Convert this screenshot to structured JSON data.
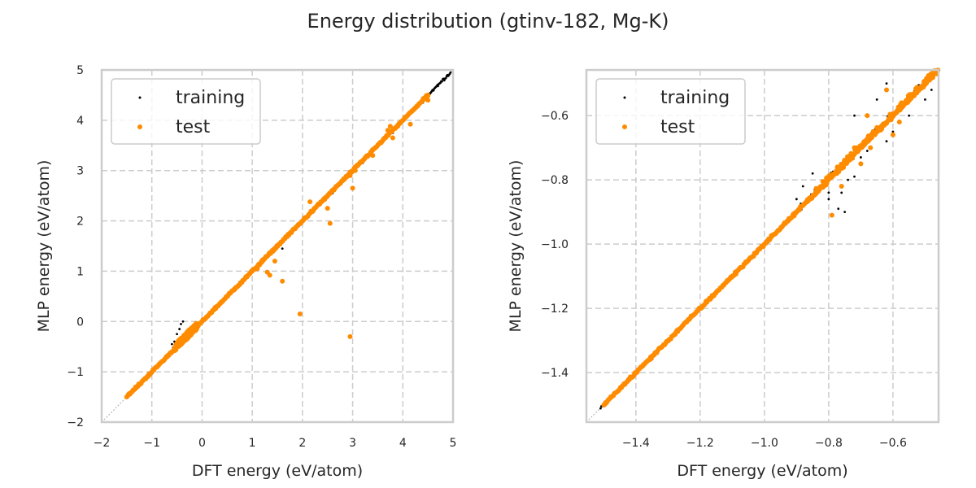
{
  "chart_data": [
    {
      "type": "scatter",
      "panel": "left",
      "suptitle": "Energy distribution (gtinv-182, Mg-K)",
      "xlabel": "DFT energy (eV/atom)",
      "ylabel": "MLP energy (eV/atom)",
      "xlim": [
        -2,
        5
      ],
      "ylim": [
        -2,
        5
      ],
      "xticks": [
        "−2",
        "−1",
        "0",
        "1",
        "2",
        "3",
        "4",
        "5"
      ],
      "xtick_values": [
        -2,
        -1,
        0,
        1,
        2,
        3,
        4,
        5
      ],
      "yticks": [
        "−2",
        "−1",
        "0",
        "1",
        "2",
        "3",
        "4",
        "5"
      ],
      "ytick_values": [
        -2,
        -1,
        0,
        1,
        2,
        3,
        4,
        5
      ],
      "grid": true,
      "legend": {
        "position": "top-left",
        "entries": [
          "training",
          "test"
        ]
      },
      "reference_line": "y = x",
      "series": [
        {
          "name": "training",
          "color": "#000000",
          "band": {
            "from": -1.5,
            "to": 4.95,
            "spread": 0.04
          },
          "cluster": {
            "x": [
              -0.6,
              -0.1
            ],
            "y": [
              -0.7,
              0.0
            ]
          },
          "points": [
            [
              -0.55,
              -0.4
            ],
            [
              -0.5,
              -0.25
            ],
            [
              -0.45,
              -0.15
            ],
            [
              -0.42,
              -0.05
            ],
            [
              -0.6,
              -0.45
            ],
            [
              -0.38,
              0.0
            ],
            [
              1.55,
              1.52
            ],
            [
              1.6,
              1.45
            ],
            [
              2.6,
              2.55
            ],
            [
              3.2,
              3.15
            ],
            [
              3.8,
              3.75
            ],
            [
              4.4,
              4.35
            ],
            [
              4.7,
              4.68
            ],
            [
              4.9,
              4.88
            ]
          ]
        },
        {
          "name": "test",
          "color": "#ff8c00",
          "band": {
            "from": -1.5,
            "to": 4.5,
            "spread": 0.03
          },
          "cluster": {
            "x": [
              -0.55,
              -0.1
            ],
            "y": [
              -0.6,
              0.0
            ]
          },
          "points": [
            [
              1.95,
              0.15
            ],
            [
              2.95,
              -0.3
            ],
            [
              1.6,
              0.8
            ],
            [
              1.35,
              0.92
            ],
            [
              1.3,
              0.98
            ],
            [
              1.45,
              1.2
            ],
            [
              1.55,
              1.55
            ],
            [
              2.55,
              1.95
            ],
            [
              2.15,
              2.38
            ],
            [
              2.6,
              2.6
            ],
            [
              2.95,
              2.9
            ],
            [
              3.0,
              2.65
            ],
            [
              3.4,
              3.3
            ],
            [
              3.7,
              3.8
            ],
            [
              3.75,
              3.88
            ],
            [
              3.9,
              3.88
            ],
            [
              3.8,
              3.65
            ],
            [
              4.15,
              3.92
            ],
            [
              4.5,
              4.4
            ],
            [
              4.5,
              4.5
            ],
            [
              3.05,
              3.0
            ],
            [
              2.5,
              2.25
            ],
            [
              1.1,
              1.05
            ],
            [
              0.9,
              0.9
            ]
          ]
        }
      ]
    },
    {
      "type": "scatter",
      "panel": "right",
      "xlabel": "DFT energy (eV/atom)",
      "ylabel": "MLP energy (eV/atom)",
      "xlim": [
        -1.554,
        -0.458
      ],
      "ylim": [
        -1.554,
        -0.458
      ],
      "xticks": [
        "−1.4",
        "−1.2",
        "−1.0",
        "−0.8",
        "−0.6"
      ],
      "xtick_values": [
        -1.4,
        -1.2,
        -1.0,
        -0.8,
        -0.6
      ],
      "yticks": [
        "−1.4",
        "−1.2",
        "−1.0",
        "−0.8",
        "−0.6"
      ],
      "ytick_values": [
        -1.4,
        -1.2,
        -1.0,
        -0.8,
        -0.6
      ],
      "grid": true,
      "legend": {
        "position": "top-left",
        "entries": [
          "training",
          "test"
        ]
      },
      "reference_line": "y = x",
      "series": [
        {
          "name": "training",
          "color": "#000000",
          "band": {
            "from": -1.51,
            "to": -0.46,
            "spread": 0.004
          },
          "cluster": {
            "x": [
              -0.9,
              -0.46
            ],
            "y": [
              -0.92,
              -0.46
            ]
          },
          "points": [
            [
              -0.77,
              -0.89
            ],
            [
              -0.75,
              -0.9
            ],
            [
              -0.8,
              -0.86
            ],
            [
              -0.8,
              -0.84
            ],
            [
              -0.76,
              -0.84
            ],
            [
              -0.74,
              -0.8
            ],
            [
              -0.72,
              -0.79
            ],
            [
              -0.7,
              -0.73
            ],
            [
              -0.68,
              -0.71
            ],
            [
              -0.62,
              -0.68
            ],
            [
              -0.6,
              -0.65
            ],
            [
              -0.55,
              -0.6
            ],
            [
              -0.5,
              -0.55
            ],
            [
              -0.48,
              -0.52
            ],
            [
              -0.72,
              -0.6
            ],
            [
              -0.62,
              -0.5
            ],
            [
              -0.65,
              -0.55
            ],
            [
              -0.85,
              -0.78
            ],
            [
              -0.88,
              -0.82
            ],
            [
              -0.9,
              -0.86
            ]
          ]
        },
        {
          "name": "test",
          "color": "#ff8c00",
          "band": {
            "from": -1.5,
            "to": -0.46,
            "spread": 0.006
          },
          "cluster": {
            "x": [
              -0.85,
              -0.46
            ],
            "y": [
              -0.87,
              -0.46
            ]
          },
          "points": [
            [
              -0.79,
              -0.91
            ],
            [
              -0.76,
              -0.82
            ],
            [
              -0.7,
              -0.75
            ],
            [
              -0.67,
              -0.7
            ],
            [
              -0.62,
              -0.52
            ],
            [
              -0.68,
              -0.6
            ],
            [
              -0.58,
              -0.62
            ],
            [
              -0.55,
              -0.55
            ],
            [
              -0.5,
              -0.5
            ],
            [
              -0.6,
              -0.66
            ],
            [
              -0.72,
              -0.7
            ]
          ]
        }
      ]
    }
  ]
}
